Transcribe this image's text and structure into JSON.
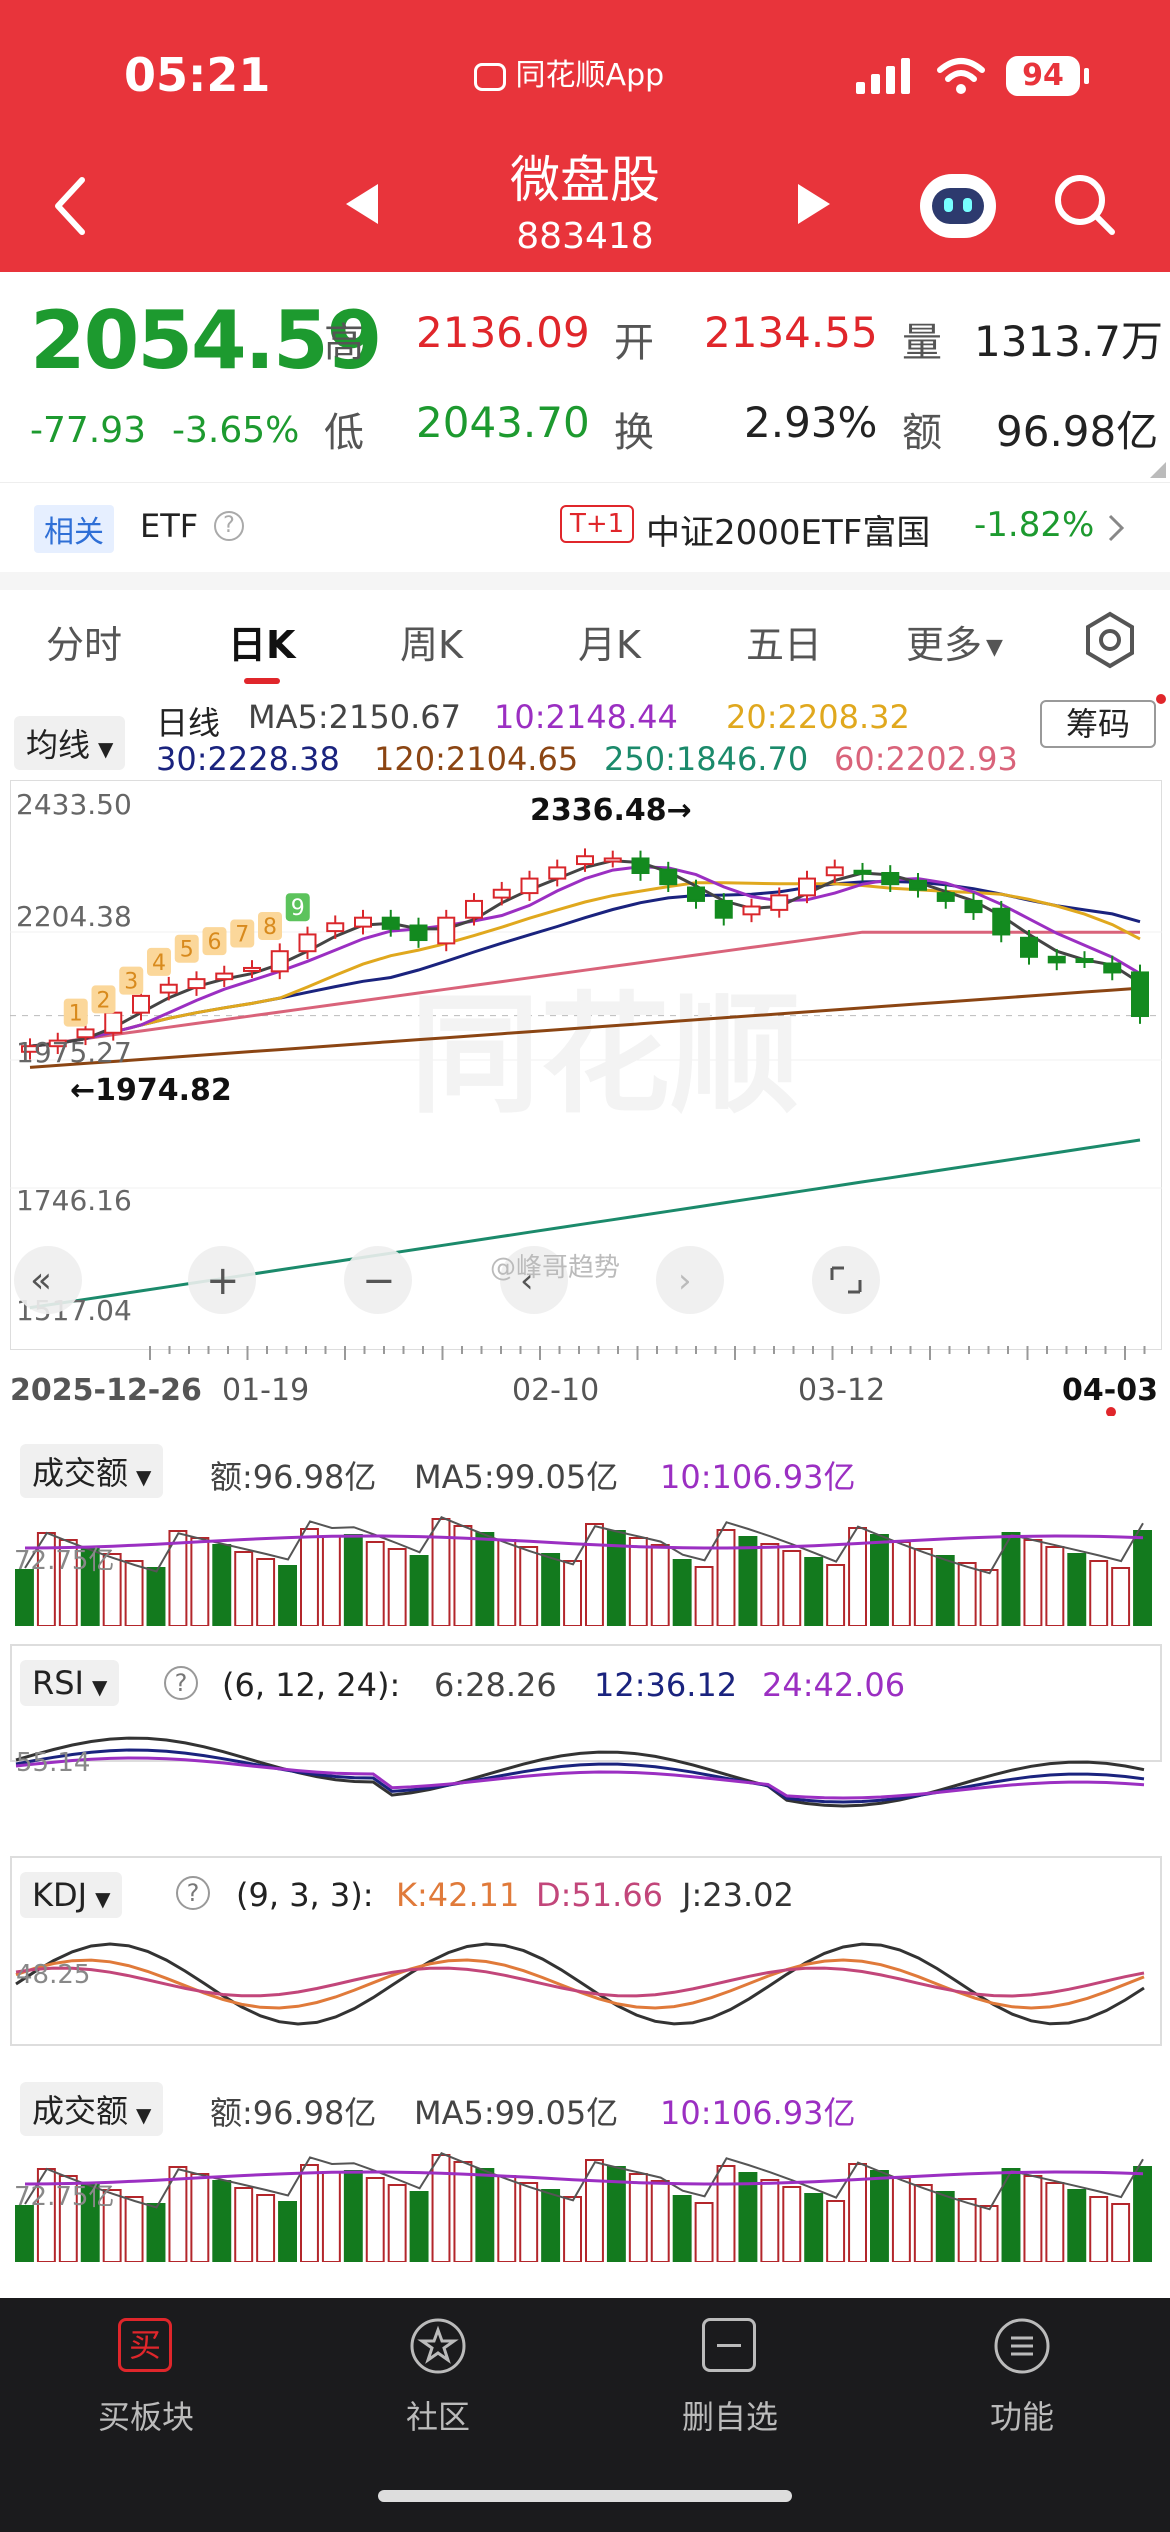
{
  "status_bar": {
    "time": "05:21",
    "app_badge": "同花顺App",
    "battery": "94"
  },
  "header": {
    "title": "微盘股",
    "code": "883418"
  },
  "quote": {
    "price": "2054.59",
    "change": "-77.93",
    "change_pct": "-3.65%",
    "high_label": "高",
    "high": "2136.09",
    "open_label": "开",
    "open": "2134.55",
    "vol_label": "量",
    "vol": "1313.7万",
    "low_label": "低",
    "low": "2043.70",
    "turn_label": "换",
    "turn": "2.93%",
    "amt_label": "额",
    "amt": "96.98亿"
  },
  "etf": {
    "tag": "相关",
    "label": "ETF",
    "badge": "T+1",
    "name": "中证2000ETF富国",
    "pct": "-1.82%"
  },
  "tabs": [
    "分时",
    "日K",
    "周K",
    "月K",
    "五日",
    "更多"
  ],
  "ma": {
    "dropdown": "均线",
    "title": "日线",
    "ma5": "MA5:2150.67",
    "ma10": "10:2148.44",
    "ma20": "20:2208.32",
    "ma30": "30:2228.38",
    "ma120": "120:2104.65",
    "ma250": "250:1846.70",
    "ma60": "60:2202.93",
    "chip_button": "筹码"
  },
  "kline": {
    "y_ticks": [
      "2433.50",
      "2204.38",
      "1975.27",
      "1746.16",
      "1517.04"
    ],
    "max_label": "2336.48→",
    "min_label": "←1974.82",
    "x_ticks": [
      "2025-12-26",
      "01-19",
      "02-10",
      "03-12",
      "04-03"
    ],
    "seq": [
      "1",
      "2",
      "3",
      "4",
      "5",
      "6",
      "7",
      "8",
      "9"
    ],
    "watermark": "同花顺",
    "weibo": "@峰哥趋势"
  },
  "vol_panel": {
    "dropdown": "成交额",
    "amt": "额:96.98亿",
    "ma5": "MA5:99.05亿",
    "ma10": "10:106.93亿",
    "axis": "72.75亿"
  },
  "rsi_panel": {
    "dropdown": "RSI",
    "params": "(6, 12, 24):",
    "r6": "6:28.26",
    "r12": "12:36.12",
    "r24": "24:42.06",
    "axis": "55.14"
  },
  "kdj_panel": {
    "dropdown": "KDJ",
    "params": "(9, 3, 3):",
    "k": "K:42.11",
    "d": "D:51.66",
    "j": "J:23.02",
    "axis": "48.25"
  },
  "vol_panel2": {
    "dropdown": "成交额",
    "amt": "额:96.98亿",
    "ma5": "MA5:99.05亿",
    "ma10": "10:106.93亿",
    "axis": "72.75亿"
  },
  "bottom_nav": [
    {
      "label": "买板块",
      "icon": "买"
    },
    {
      "label": "社区",
      "icon": ""
    },
    {
      "label": "删自选",
      "icon": ""
    },
    {
      "label": "功能",
      "icon": ""
    }
  ],
  "chart_data": {
    "type": "candlestick",
    "ylim": [
      1517.04,
      2433.5
    ],
    "closes": [
      2000,
      2010,
      2030,
      2060,
      2090,
      2110,
      2120,
      2130,
      2140,
      2170,
      2200,
      2220,
      2230,
      2210,
      2190,
      2230,
      2260,
      2280,
      2300,
      2320,
      2340,
      2336,
      2310,
      2290,
      2260,
      2230,
      2250,
      2270,
      2300,
      2320,
      2310,
      2290,
      2280,
      2260,
      2240,
      2200,
      2160,
      2150,
      2154,
      2132,
      2054
    ]
  }
}
